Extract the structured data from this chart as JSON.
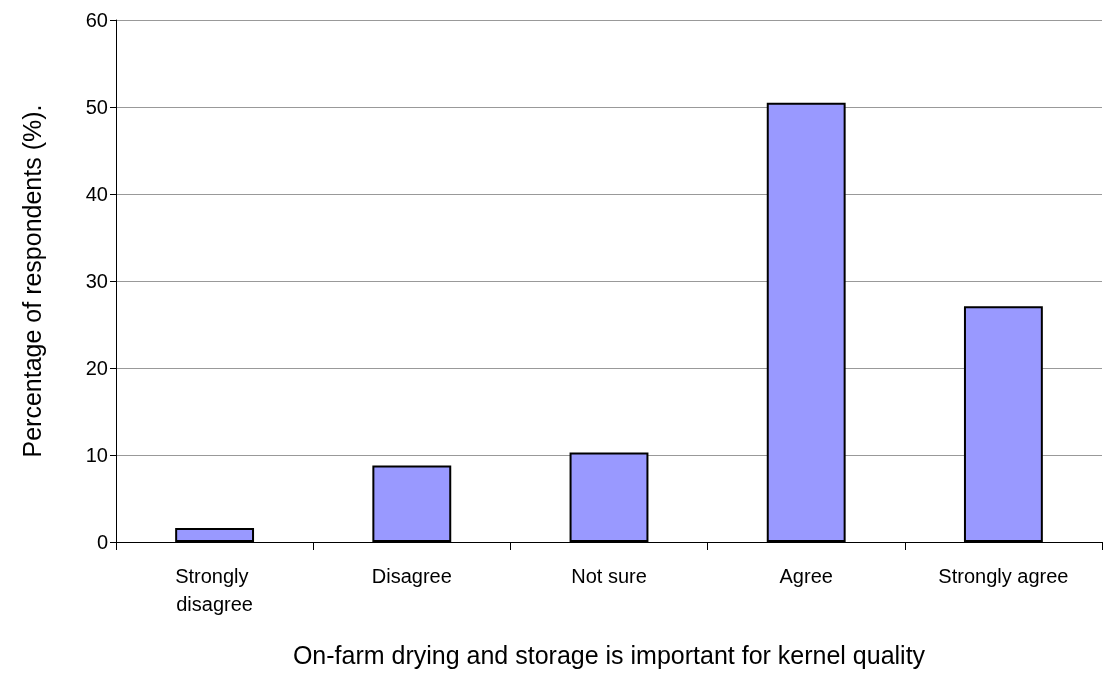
{
  "chart_data": {
    "type": "bar",
    "xlabel": "On-farm drying and storage is important for kernel quality",
    "ylabel": "Percentage of respondents (%).",
    "categories": [
      "Strongly disagree",
      "Disagree",
      "Not sure",
      "Agree",
      "Strongly agree"
    ],
    "values": [
      1.6,
      8.8,
      10.3,
      50.5,
      27.1
    ],
    "color": "#9999ff",
    "ylim": [
      0,
      60
    ],
    "yticks": [
      0,
      10,
      20,
      30,
      40,
      50,
      60
    ],
    "grid": "y"
  }
}
